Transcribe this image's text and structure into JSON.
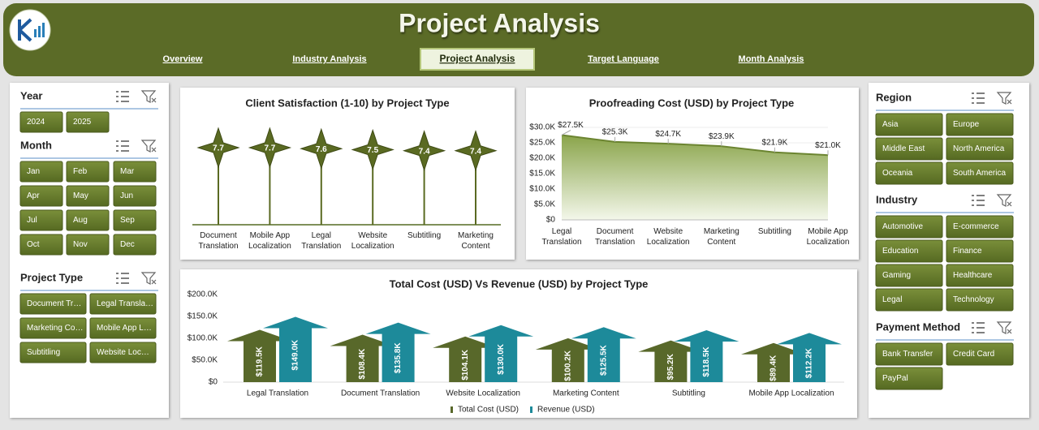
{
  "header": {
    "title": "Project Analysis",
    "nav": [
      "Overview",
      "Industry Analysis",
      "Project Analysis",
      "Target Language",
      "Month Analysis"
    ],
    "active_nav": 2
  },
  "slicers": {
    "left": [
      {
        "title": "Year",
        "items": [
          "2024",
          "2025"
        ]
      },
      {
        "title": "Month",
        "items": [
          "Jan",
          "Feb",
          "Mar",
          "Apr",
          "May",
          "Jun",
          "Jul",
          "Aug",
          "Sep",
          "Oct",
          "Nov",
          "Dec"
        ]
      },
      {
        "title": "Project Type",
        "items": [
          "Document Tr…",
          "Legal Transla…",
          "Marketing Co…",
          "Mobile App L…",
          "Subtitling",
          "Website Loc…"
        ]
      }
    ],
    "right": [
      {
        "title": "Region",
        "items": [
          "Asia",
          "Europe",
          "Middle East",
          "North America",
          "Oceania",
          "South America"
        ]
      },
      {
        "title": "Industry",
        "items": [
          "Automotive",
          "E-commerce",
          "Education",
          "Finance",
          "Gaming",
          "Healthcare",
          "Legal",
          "Technology"
        ]
      },
      {
        "title": "Payment Method",
        "items": [
          "Bank Transfer",
          "Credit Card",
          "PayPal"
        ]
      }
    ]
  },
  "chart_data": [
    {
      "type": "lollipop",
      "title": "Client Satisfaction (1-10) by Project Type",
      "categories": [
        "Document Translation",
        "Mobile App Localization",
        "Legal Translation",
        "Website Localization",
        "Subtitling",
        "Marketing Content"
      ],
      "values": [
        7.7,
        7.7,
        7.6,
        7.5,
        7.4,
        7.4
      ],
      "color": "#5a6a22"
    },
    {
      "type": "area",
      "title": "Proofreading Cost (USD) by Project Type",
      "categories": [
        "Legal Translation",
        "Document Translation",
        "Website Localization",
        "Marketing Content",
        "Subtitling",
        "Mobile App Localization"
      ],
      "values": [
        27500,
        25300,
        24700,
        23900,
        21900,
        21000
      ],
      "value_labels": [
        "$27.5K",
        "$25.3K",
        "$24.7K",
        "$23.9K",
        "$21.9K",
        "$21.0K"
      ],
      "color": "#6b8430",
      "grid": true,
      "ylim": [
        0,
        30000
      ],
      "yticks": [
        {
          "value": 0,
          "label": "$0"
        },
        {
          "value": 5000,
          "label": "$5.0K"
        },
        {
          "value": 10000,
          "label": "$10.0K"
        },
        {
          "value": 15000,
          "label": "$15.0K"
        },
        {
          "value": 20000,
          "label": "$20.0K"
        },
        {
          "value": 25000,
          "label": "$25.0K"
        },
        {
          "value": 30000,
          "label": "$30.0K"
        }
      ]
    },
    {
      "type": "bar",
      "title": "Total Cost (USD) Vs Revenue (USD) by Project Type",
      "categories": [
        "Legal Translation",
        "Document Translation",
        "Website Localization",
        "Marketing Content",
        "Subtitling",
        "Mobile App Localization"
      ],
      "series": [
        {
          "name": "Total Cost (USD)",
          "color": "#58682a",
          "values": [
            119500,
            108400,
            104100,
            100200,
            95200,
            89400
          ],
          "value_labels": [
            "$119.5K",
            "$108.4K",
            "$104.1K",
            "$100.2K",
            "$95.2K",
            "$89.4K"
          ]
        },
        {
          "name": "Revenue (USD)",
          "color": "#1d8a9a",
          "values": [
            149000,
            135800,
            130000,
            125500,
            118500,
            112200
          ],
          "value_labels": [
            "$149.0K",
            "$135.8K",
            "$130.0K",
            "$125.5K",
            "$118.5K",
            "$112.2K"
          ]
        }
      ],
      "grid": false,
      "legend": "bottom",
      "ylim": [
        0,
        200000
      ],
      "yticks": [
        {
          "value": 0,
          "label": "$0"
        },
        {
          "value": 50000,
          "label": "$50.0K"
        },
        {
          "value": 100000,
          "label": "$100.0K"
        },
        {
          "value": 150000,
          "label": "$150.0K"
        },
        {
          "value": 200000,
          "label": "$200.0K"
        }
      ]
    }
  ]
}
